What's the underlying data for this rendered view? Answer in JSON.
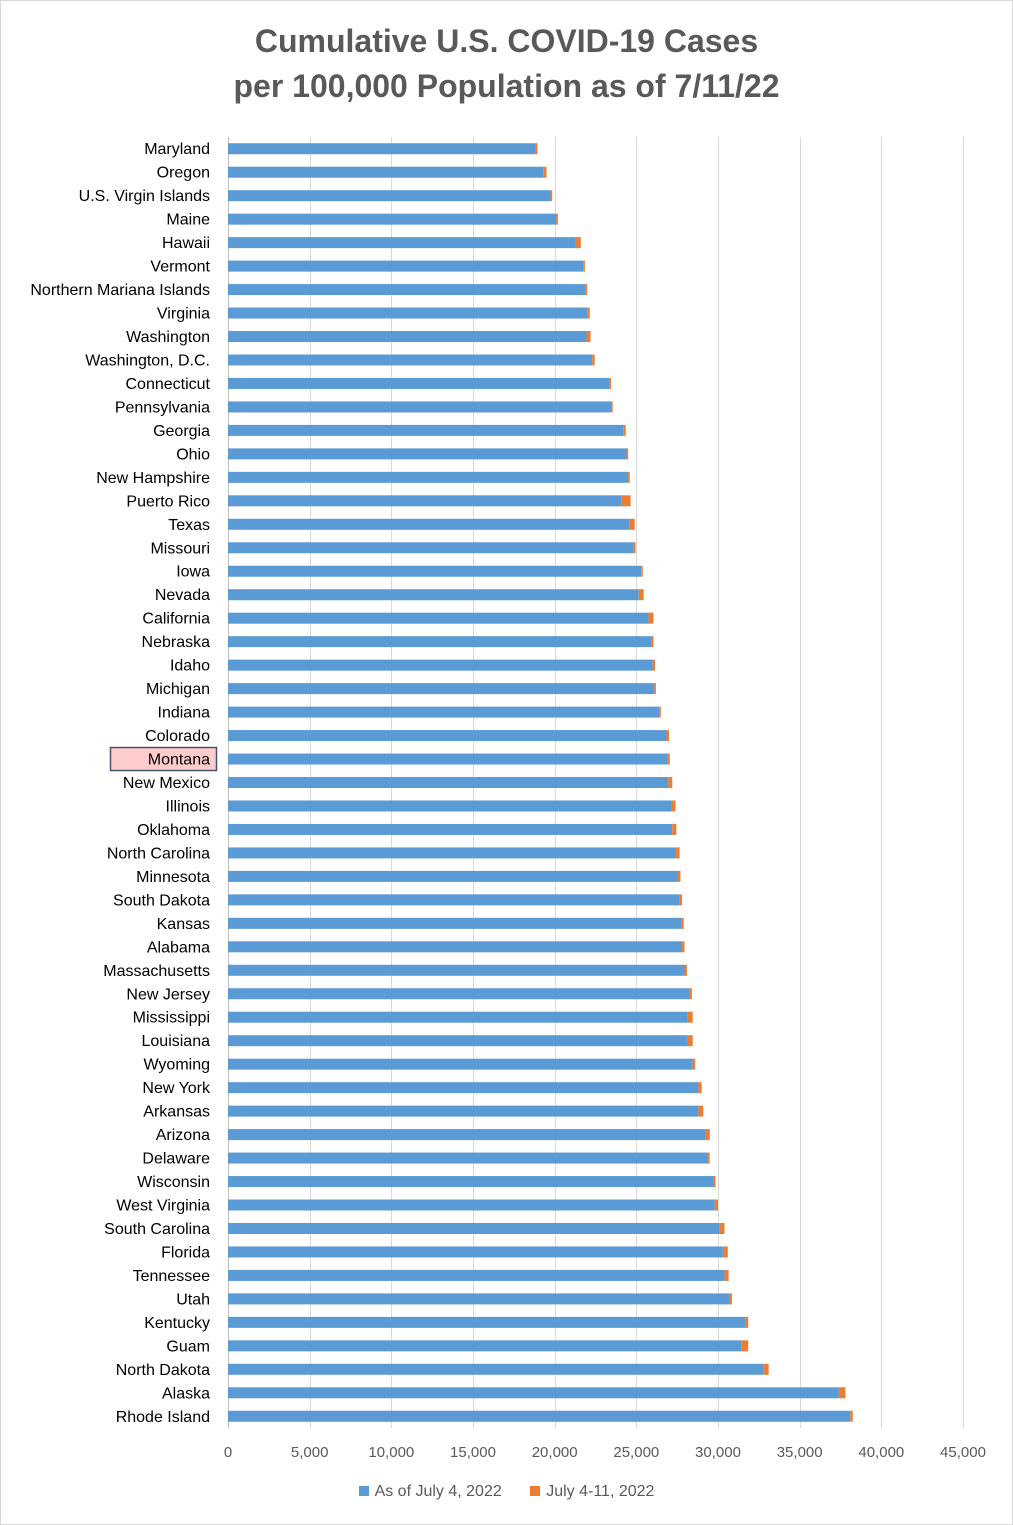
{
  "title_line1": "Cumulative U.S. COVID-19 Cases",
  "title_line2": "per 100,000 Population as of 7/11/22",
  "colors": {
    "base": "#5b9bd5",
    "increment": "#ed7d31",
    "grid": "#d9d9d9",
    "highlight_fill": "#ffcccc",
    "highlight_border": "#44546a"
  },
  "highlighted_category": "Montana",
  "chart_data": {
    "type": "bar",
    "orientation": "horizontal",
    "stacked": true,
    "categories": [
      "Maryland",
      "Oregon",
      "U.S. Virgin Islands",
      "Maine",
      "Hawaii",
      "Vermont",
      "Northern Mariana Islands",
      "Virginia",
      "Washington",
      "Washington, D.C.",
      "Connecticut",
      "Pennsylvania",
      "Georgia",
      "Ohio",
      "New Hampshire",
      "Puerto Rico",
      "Texas",
      "Missouri",
      "Iowa",
      "Nevada",
      "California",
      "Nebraska",
      "Idaho",
      "Michigan",
      "Indiana",
      "Colorado",
      "Montana",
      "New Mexico",
      "Illinois",
      "Oklahoma",
      "North Carolina",
      "Minnesota",
      "South Dakota",
      "Kansas",
      "Alabama",
      "Massachusetts",
      "New Jersey",
      "Mississippi",
      "Louisiana",
      "Wyoming",
      "New York",
      "Arkansas",
      "Arizona",
      "Delaware",
      "Wisconsin",
      "West Virginia",
      "South Carolina",
      "Florida",
      "Tennessee",
      "Utah",
      "Kentucky",
      "Guam",
      "North Dakota",
      "Alaska",
      "Rhode Island"
    ],
    "series": [
      {
        "name": "As of July 4, 2022",
        "values": [
          18850,
          19300,
          19750,
          20100,
          21300,
          21750,
          21900,
          22000,
          21950,
          22300,
          23350,
          23450,
          24200,
          24400,
          24500,
          24100,
          24600,
          24850,
          25300,
          25150,
          25750,
          25900,
          26000,
          26100,
          26400,
          26850,
          26900,
          26950,
          27150,
          27200,
          27400,
          27550,
          27650,
          27750,
          27800,
          27950,
          28250,
          28150,
          28100,
          28450,
          28800,
          28800,
          29250,
          29400,
          29750,
          29800,
          30100,
          30300,
          30400,
          30700,
          31700,
          31450,
          32800,
          37400,
          38100
        ]
      },
      {
        "name": "July 4-11, 2022",
        "values": [
          100,
          200,
          100,
          100,
          300,
          100,
          50,
          150,
          250,
          150,
          100,
          100,
          150,
          100,
          100,
          550,
          300,
          100,
          80,
          300,
          300,
          150,
          150,
          100,
          100,
          150,
          150,
          250,
          250,
          250,
          250,
          150,
          150,
          150,
          150,
          150,
          150,
          300,
          350,
          150,
          200,
          300,
          250,
          50,
          100,
          200,
          300,
          300,
          250,
          150,
          150,
          400,
          300,
          400,
          150
        ]
      }
    ],
    "xlim": [
      0,
      45000
    ],
    "xticks": [
      0,
      5000,
      10000,
      15000,
      20000,
      25000,
      30000,
      35000,
      40000,
      45000
    ],
    "xtick_labels": [
      "0",
      "5,000",
      "10,000",
      "15,000",
      "20,000",
      "25,000",
      "30,000",
      "35,000",
      "40,000",
      "45,000"
    ],
    "grid": "vertical",
    "legend": "bottom"
  }
}
